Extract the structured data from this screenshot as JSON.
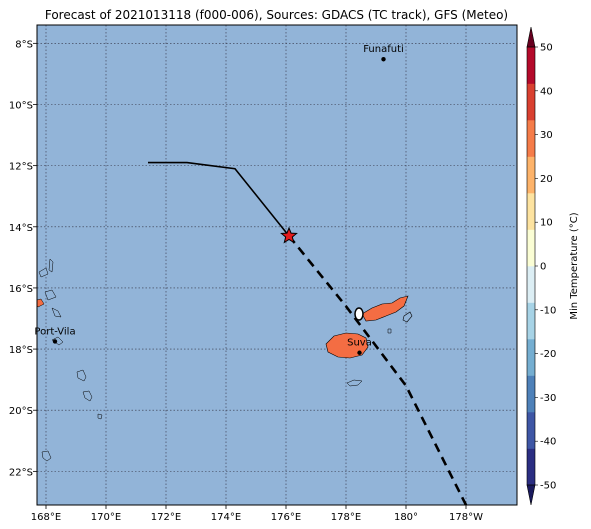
{
  "title": "Forecast of 2021013118 (f000-006), Sources: GDACS (TC track), GFS (Meteo)",
  "map": {
    "background_color": "#92b4d8",
    "grid_style": "dotted",
    "lon_range": [
      167.7,
      183.7
    ],
    "lat_range": [
      -23.1,
      -7.4
    ],
    "lon_ticks": [
      {
        "value": 168,
        "label": "168°E"
      },
      {
        "value": 170,
        "label": "170°E"
      },
      {
        "value": 172,
        "label": "172°E"
      },
      {
        "value": 174,
        "label": "174°E"
      },
      {
        "value": 176,
        "label": "176°E"
      },
      {
        "value": 178,
        "label": "178°E"
      },
      {
        "value": 180,
        "label": "180°"
      },
      {
        "value": 182,
        "label": "178°W"
      }
    ],
    "lat_ticks": [
      {
        "value": -8,
        "label": "8°S"
      },
      {
        "value": -10,
        "label": "10°S"
      },
      {
        "value": -12,
        "label": "12°S"
      },
      {
        "value": -14,
        "label": "14°S"
      },
      {
        "value": -16,
        "label": "16°S"
      },
      {
        "value": -18,
        "label": "18°S"
      },
      {
        "value": -20,
        "label": "20°S"
      },
      {
        "value": -22,
        "label": "22°S"
      }
    ],
    "cities": [
      {
        "name": "Funafuti",
        "lon": 179.25,
        "lat": -8.52
      },
      {
        "name": "Port-Vila",
        "lon": 168.3,
        "lat": -17.75
      },
      {
        "name": "Suva",
        "lon": 178.45,
        "lat": -18.12
      }
    ],
    "track_past": [
      [
        171.4,
        -11.9
      ],
      [
        172.7,
        -11.9
      ],
      [
        174.3,
        -12.1
      ],
      [
        176.1,
        -14.3
      ]
    ],
    "track_forecast": [
      [
        176.1,
        -14.3
      ],
      [
        178.0,
        -16.6
      ],
      [
        180.0,
        -19.2
      ],
      [
        182.0,
        -23.1
      ]
    ],
    "current_position": {
      "lon": 176.1,
      "lat": -14.3,
      "marker": "star-icon",
      "color": "#e31a1c"
    },
    "land_color": "#f46d43"
  },
  "colorbar": {
    "label": "Min Temperature (°C)",
    "ticks": [
      50,
      40,
      30,
      20,
      10,
      0,
      -10,
      -20,
      -30,
      -40,
      -50
    ],
    "min": -50,
    "max": 50,
    "colors": [
      "#2b2e82",
      "#3e56a5",
      "#4e81b9",
      "#75aed1",
      "#a7d3e6",
      "#dceef4",
      "#fbfed5",
      "#fde3a0",
      "#fdb36a",
      "#f57c49",
      "#d94030",
      "#b40a2b"
    ]
  }
}
